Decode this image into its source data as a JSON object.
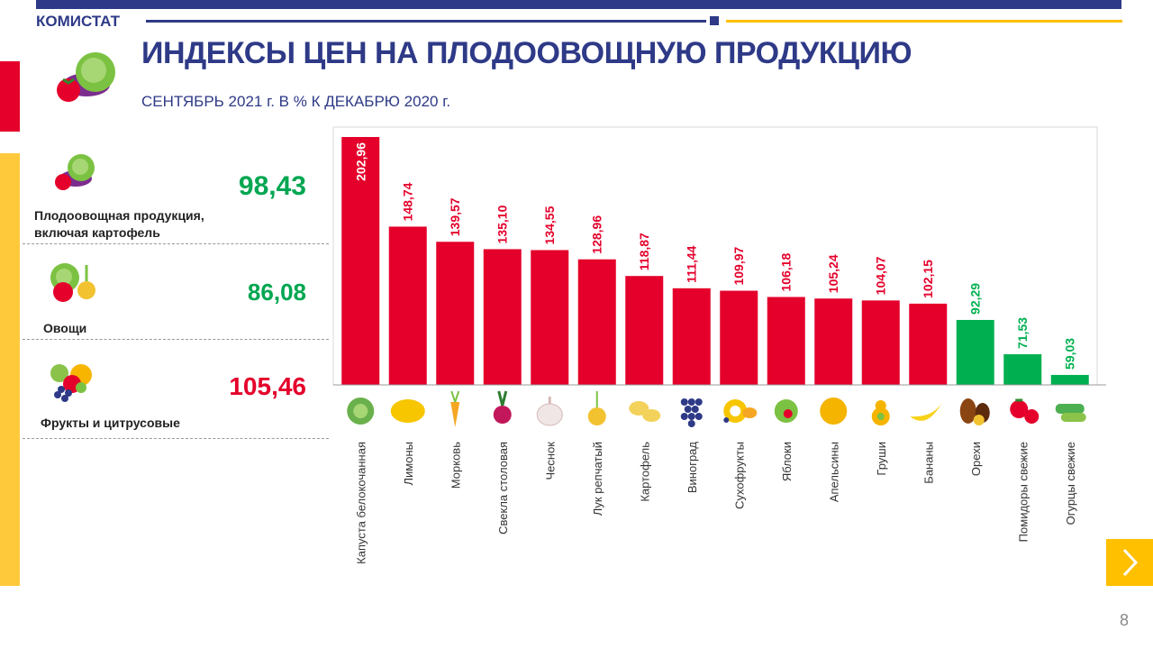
{
  "header": {
    "brand": "КОМИСТАТ",
    "title": "ИНДЕКСЫ ЦЕН НА ПЛОДООВОЩНУЮ ПРОДУКЦИЮ",
    "subtitle": "СЕНТЯБРЬ 2021 г. В % К ДЕКАБРЮ 2020 г."
  },
  "summary": [
    {
      "value": "98,43",
      "label_line1": "Плодоовощная продукция,",
      "label_line2": "включая картофель",
      "color": "#00a651",
      "icon": "vegetables-icon"
    },
    {
      "value": "86,08",
      "label_line1": "Овощи",
      "label_line2": "",
      "color": "#00a651",
      "icon": "vegetables-icon"
    },
    {
      "value": "105,46",
      "label_line1": "Фрукты и цитрусовые",
      "label_line2": "",
      "color": "#e4002b",
      "icon": "fruits-icon"
    }
  ],
  "colors": {
    "up": "#e4002b",
    "down": "#00b050",
    "brand": "#2e3a87",
    "accent": "#ffc000"
  },
  "page_number": "8",
  "nav": {
    "next_icon": "chevron-right-icon"
  },
  "chart_data": {
    "type": "bar",
    "baseline": 100,
    "categories": [
      "Капуста белокочанная",
      "Лимоны",
      "Морковь",
      "Свекла столовая",
      "Чеснок",
      "Лук репчатый",
      "Картофель",
      "Виноград",
      "Сухофрукты",
      "Яблоки",
      "Апельсины",
      "Груши",
      "Бананы",
      "Орехи",
      "Помидоры свежие",
      "Огурцы свежие"
    ],
    "values": [
      202.96,
      148.74,
      139.57,
      135.1,
      134.55,
      128.96,
      118.87,
      111.44,
      109.97,
      106.18,
      105.24,
      104.07,
      102.15,
      92.29,
      71.53,
      59.03
    ],
    "labels": [
      "202,96",
      "148,74",
      "139,57",
      "135,10",
      "134,55",
      "128,96",
      "118,87",
      "111,44",
      "109,97",
      "106,18",
      "105,24",
      "104,07",
      "102,15",
      "92,29",
      "71,53",
      "59,03"
    ],
    "icons": [
      "cabbage-icon",
      "lemon-icon",
      "carrot-icon",
      "beet-icon",
      "garlic-icon",
      "onion-icon",
      "potato-icon",
      "grapes-icon",
      "dried-fruit-icon",
      "apple-icon",
      "orange-icon",
      "pear-icon",
      "banana-icon",
      "nuts-icon",
      "tomato-icon",
      "cucumber-icon"
    ]
  }
}
